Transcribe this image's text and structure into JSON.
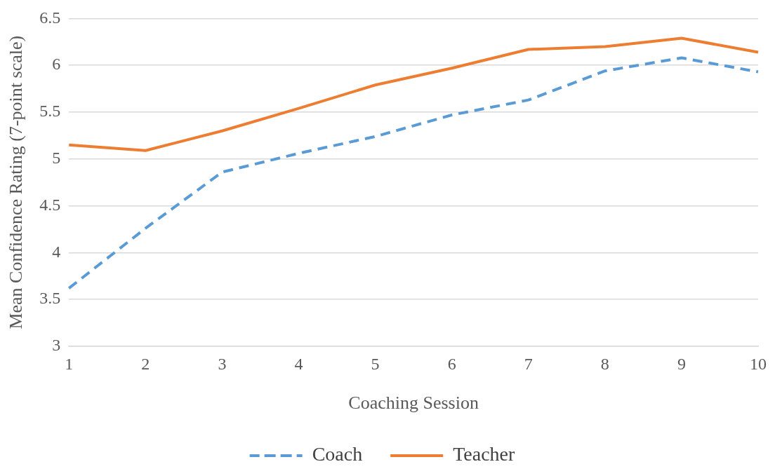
{
  "chart_data": {
    "type": "line",
    "xlabel": "Coaching Session",
    "ylabel": "Mean Confidence Rating (7-point scale)",
    "categories": [
      "1",
      "2",
      "3",
      "4",
      "5",
      "6",
      "7",
      "8",
      "9",
      "10"
    ],
    "series": [
      {
        "name": "Coach",
        "color": "#5b9bd5",
        "line_style": "dashed",
        "values": [
          3.62,
          4.26,
          4.86,
          5.06,
          5.24,
          5.47,
          5.63,
          5.94,
          6.08,
          5.93
        ]
      },
      {
        "name": "Teacher",
        "color": "#ed7d31",
        "line_style": "solid",
        "values": [
          5.15,
          5.09,
          5.3,
          5.54,
          5.79,
          5.97,
          6.17,
          6.2,
          6.29,
          6.14
        ]
      }
    ],
    "ylim": [
      3,
      6.5
    ],
    "yticks": [
      3,
      3.5,
      4,
      4.5,
      5,
      5.5,
      6,
      6.5
    ],
    "grid": "y",
    "legend": "bottom",
    "marker": "none"
  }
}
